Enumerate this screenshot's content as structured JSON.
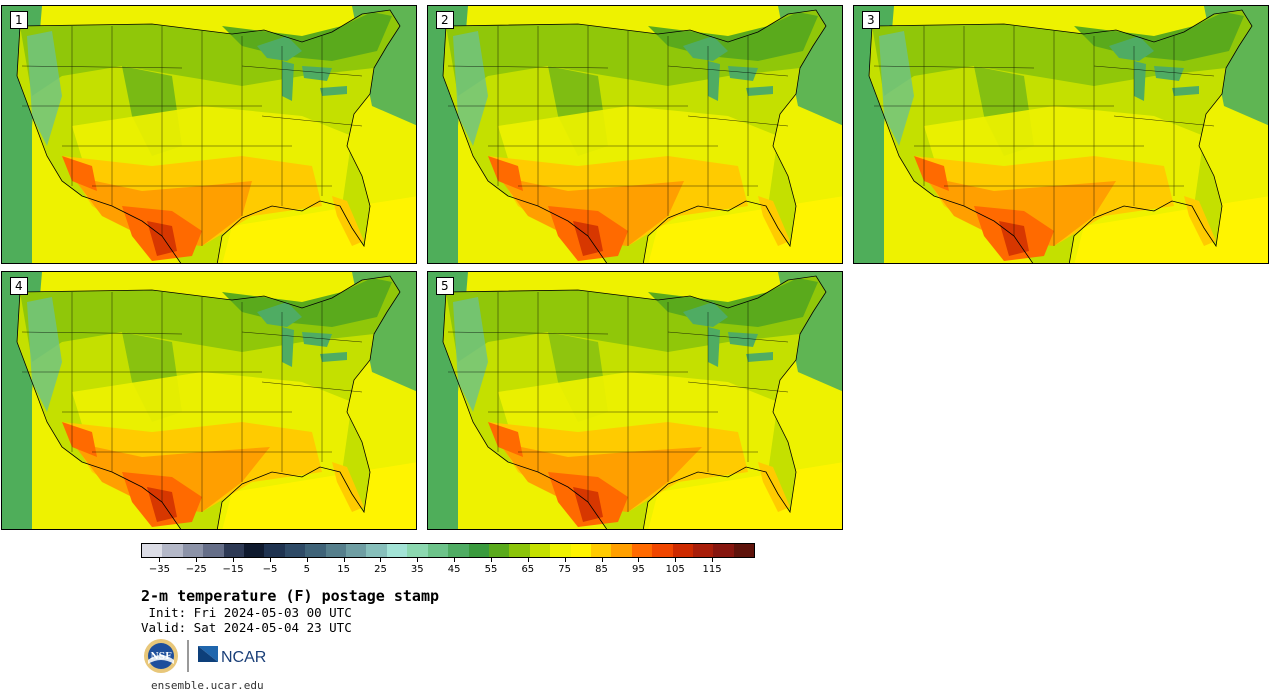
{
  "figure": {
    "title": "2-m temperature (F) postage stamp",
    "init_line": " Init: Fri 2024-05-03 00 UTC",
    "valid_line": "Valid: Sat 2024-05-04 23 UTC",
    "website": "ensemble.ucar.edu"
  },
  "panels": [
    {
      "member": "1",
      "variant": 0
    },
    {
      "member": "2",
      "variant": 1
    },
    {
      "member": "3",
      "variant": 2
    },
    {
      "member": "4",
      "variant": 3
    },
    {
      "member": "5",
      "variant": 4
    }
  ],
  "colorbar": {
    "colors": [
      "#dcdde6",
      "#b4b8c8",
      "#8c93a8",
      "#656e88",
      "#2e3a55",
      "#0f1a2e",
      "#1f3350",
      "#2e4a66",
      "#3f6378",
      "#567f8c",
      "#6f9ea3",
      "#87bfbb",
      "#a3e3d6",
      "#8cd8b0",
      "#6dc38a",
      "#4fac63",
      "#3a9a3e",
      "#5aaa1c",
      "#8bc40a",
      "#c4e000",
      "#eef200",
      "#fff400",
      "#ffcb00",
      "#ff9f00",
      "#ff6a00",
      "#f04600",
      "#cd2a00",
      "#a81e0a",
      "#86160f",
      "#5e130b"
    ],
    "tick_labels": [
      "−35",
      "−25",
      "−15",
      "−5",
      "5",
      "15",
      "25",
      "35",
      "45",
      "55",
      "65",
      "75",
      "85",
      "95",
      "105",
      "115"
    ],
    "tick_values": [
      -35,
      -25,
      -15,
      -5,
      5,
      15,
      25,
      35,
      45,
      55,
      65,
      75,
      85,
      95,
      105,
      115
    ],
    "range": [
      -40,
      120
    ]
  },
  "logos": {
    "nsf_text": "NSF",
    "ncar_text": "NCAR"
  },
  "map_colors": {
    "ocean_pacific": "#4fae5a",
    "ocean_atlantic": "#5fb553",
    "gulf": "#fff400",
    "land_base": "#c4e000",
    "cool_green": "#5aaa1c",
    "mid_green": "#8bc40a",
    "yellow": "#eef200",
    "orange": "#ff9f00",
    "light_orange": "#ffcb00",
    "dark_orange": "#ff6a00",
    "red": "#cd2a00",
    "mountain": "#6dc38a",
    "lake": "#4fac63"
  }
}
